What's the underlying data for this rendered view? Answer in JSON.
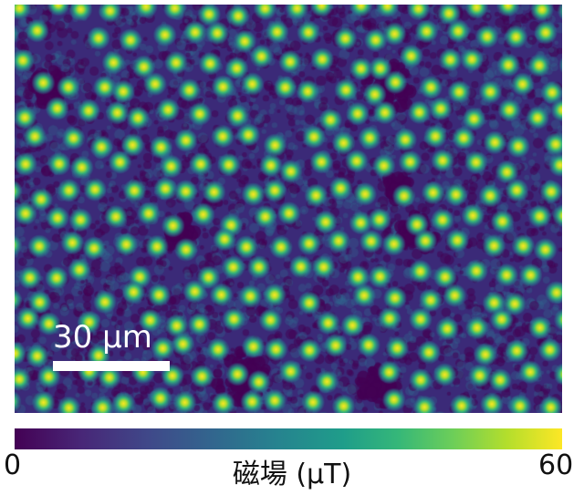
{
  "image": {
    "description": "Magnetic field map of vortex lattice (viridis colormap)",
    "background_color": "#3b2a78",
    "dark_patch_color": "#440154",
    "dot_core_color": "#fde725",
    "dot_mid_color": "#35b779",
    "dot_halo_color": "#26838f"
  },
  "scalebar": {
    "label": "30 μm",
    "color": "#ffffff"
  },
  "colorbar": {
    "min_label": "0",
    "max_label": "60",
    "title": "磁場 (μT)",
    "colormap": "viridis",
    "range": [
      0,
      60
    ],
    "unit": "μT"
  }
}
